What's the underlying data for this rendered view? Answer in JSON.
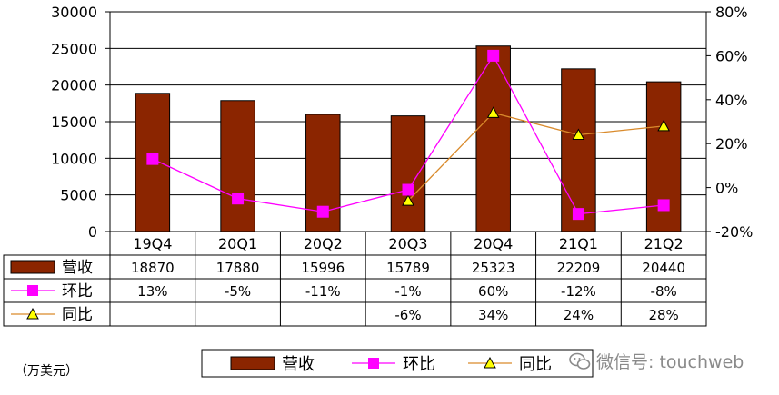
{
  "unit_note": "（万美元）",
  "watermark": "微信号: touchweb",
  "colors": {
    "bar": "#8B2500",
    "ring": "#FF00FF",
    "yoy_line": "#D98A2B",
    "yoy_marker": "#FFFF00",
    "grid": "#000000"
  },
  "chart_data": {
    "type": "bar",
    "categories": [
      "19Q4",
      "20Q1",
      "20Q2",
      "20Q3",
      "20Q4",
      "21Q1",
      "21Q2"
    ],
    "ylim_left": [
      0,
      30000
    ],
    "yticks_left": [
      "0",
      "5000",
      "10000",
      "15000",
      "20000",
      "25000",
      "30000"
    ],
    "ylim_right": [
      -20,
      80
    ],
    "yticks_right": [
      "-20%",
      "0%",
      "20%",
      "40%",
      "60%",
      "80%"
    ],
    "grid": true,
    "legend_position": "bottom",
    "series": [
      {
        "name": "营收",
        "type": "bar",
        "axis": "left",
        "values": [
          18870,
          17880,
          15996,
          15789,
          25323,
          22209,
          20440
        ],
        "labels": [
          "18870",
          "17880",
          "15996",
          "15789",
          "25323",
          "22209",
          "20440"
        ]
      },
      {
        "name": "环比",
        "type": "line",
        "axis": "right",
        "marker": "square",
        "values": [
          13,
          -5,
          -11,
          -1,
          60,
          -12,
          -8
        ],
        "labels": [
          "13%",
          "-5%",
          "-11%",
          "-1%",
          "60%",
          "-12%",
          "-8%"
        ]
      },
      {
        "name": "同比",
        "type": "line",
        "axis": "right",
        "marker": "triangle",
        "values": [
          null,
          null,
          null,
          -6,
          34,
          24,
          28
        ],
        "labels": [
          "",
          "",
          "",
          "-6%",
          "34%",
          "24%",
          "28%"
        ]
      }
    ]
  }
}
